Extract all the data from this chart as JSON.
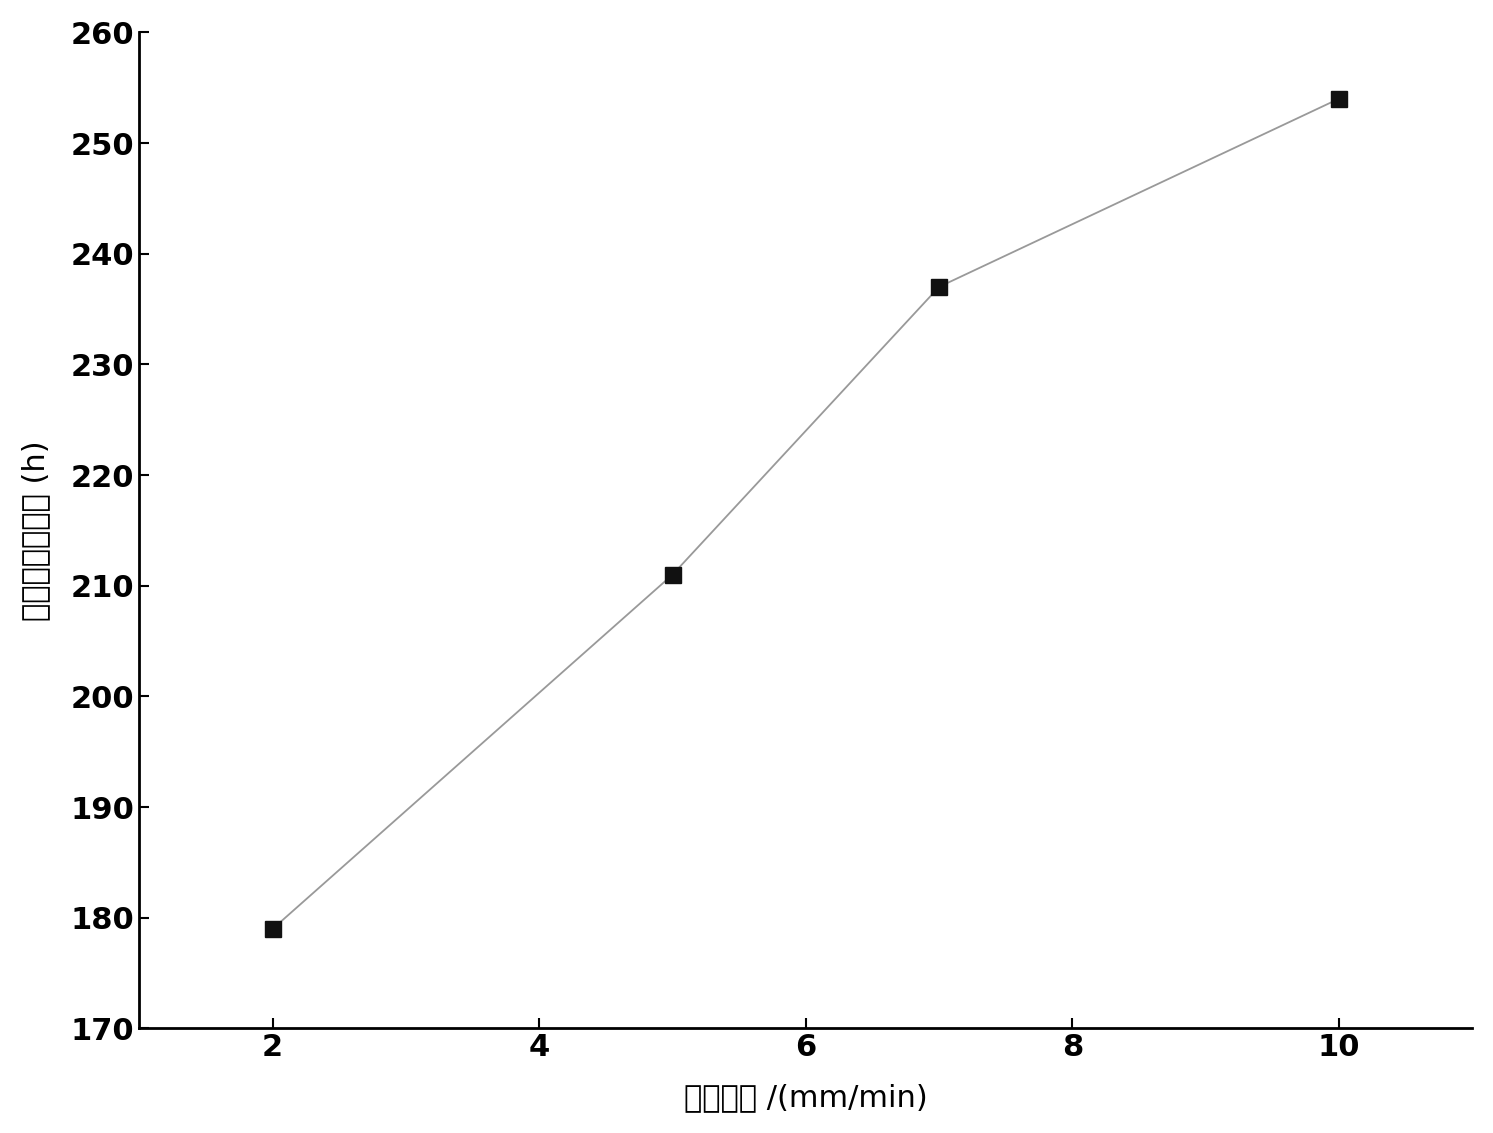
{
  "x": [
    2,
    5,
    7,
    10
  ],
  "y": [
    179,
    211,
    237,
    254
  ],
  "xlabel": "拉晶速率 /(mm/min)",
  "ylabel": "高温持久寿命／ (h)",
  "xlim": [
    1,
    11
  ],
  "ylim": [
    170,
    260
  ],
  "xticks": [
    2,
    4,
    6,
    8,
    10
  ],
  "yticks": [
    170,
    180,
    190,
    200,
    210,
    220,
    230,
    240,
    250,
    260
  ],
  "line_color": "#999999",
  "marker_color": "#111111",
  "marker_size": 11,
  "line_width": 1.3,
  "background_color": "#ffffff",
  "xlabel_fontsize": 22,
  "ylabel_fontsize": 22,
  "tick_fontsize": 22,
  "tick_fontweight": "bold"
}
